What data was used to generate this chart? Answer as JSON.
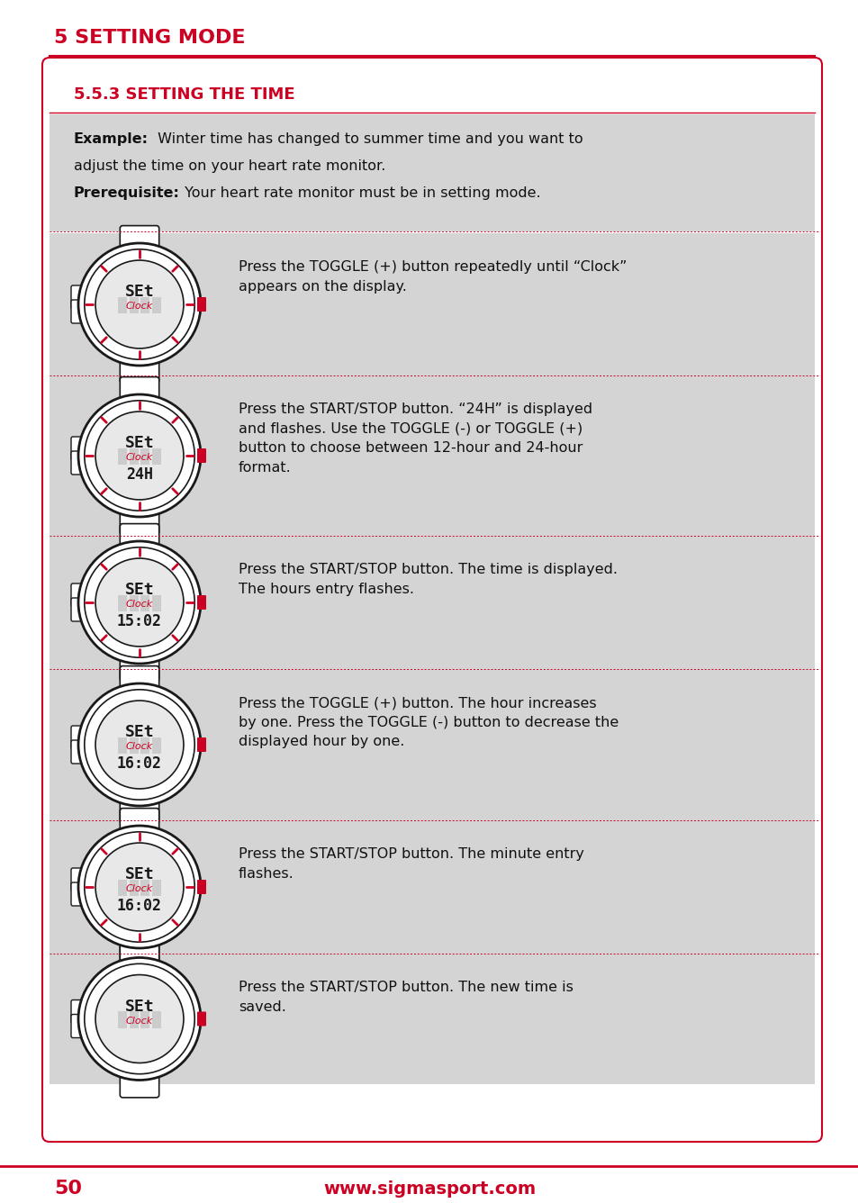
{
  "page_title": "5 SETTING MODE",
  "section_title": "5.5.3 SETTING THE TIME",
  "red_color": "#CC0022",
  "bg_gray": "#D4D4D4",
  "bg_white": "#FFFFFF",
  "text_black": "#111111",
  "footer_page": "50",
  "footer_url": "www.sigmasport.com",
  "intro_bold1": "Example:",
  "intro_text1": " Winter time has changed to summer time and you want to\nadjust the time on your heart rate monitor.",
  "intro_bold2": "Prerequisite:",
  "intro_text2": " Your heart rate monitor must be in setting mode.",
  "rows": [
    {
      "watch_label": "SEt",
      "watch_sub": "Clock",
      "watch_bottom": "",
      "show_red_ticks": true,
      "description": "Press the TOGGLE (+) button repeatedly until “Clock”\nappears on the display."
    },
    {
      "watch_label": "SEt",
      "watch_sub": "Clock",
      "watch_bottom": "24H",
      "show_red_ticks": true,
      "description": "Press the START/STOP button. “24H” is displayed\nand flashes. Use the TOGGLE (-) or TOGGLE (+)\nbutton to choose between 12-hour and 24-hour\nformat."
    },
    {
      "watch_label": "SEt",
      "watch_sub": "Clock",
      "watch_bottom": "15:02",
      "show_red_ticks": true,
      "description": "Press the START/STOP button. The time is displayed.\nThe hours entry flashes."
    },
    {
      "watch_label": "SEt",
      "watch_sub": "Clock",
      "watch_bottom": "16:02",
      "show_red_ticks": false,
      "description": "Press the TOGGLE (+) button. The hour increases\nby one. Press the TOGGLE (-) button to decrease the\ndisplayed hour by one."
    },
    {
      "watch_label": "SEt",
      "watch_sub": "Clock",
      "watch_bottom": "16:02",
      "show_red_ticks": true,
      "description": "Press the START/STOP button. The minute entry\nflashes."
    },
    {
      "watch_label": "SEt",
      "watch_sub": "Clock",
      "watch_bottom": "",
      "show_red_ticks": false,
      "description": "Press the START/STOP button. The new time is\nsaved."
    }
  ]
}
